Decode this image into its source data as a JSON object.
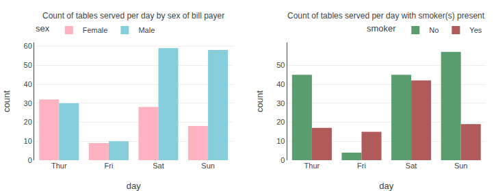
{
  "chart_data": [
    {
      "type": "bar",
      "title": "Count of tables served per day by sex of bill payer",
      "xlabel": "day",
      "ylabel": "count",
      "categories": [
        "Thur",
        "Fri",
        "Sat",
        "Sun"
      ],
      "series": [
        {
          "name": "Female",
          "color": "#ffb3c1",
          "values": [
            32,
            9,
            28,
            18
          ]
        },
        {
          "name": "Male",
          "color": "#87cedc",
          "values": [
            30,
            10,
            59,
            58
          ]
        }
      ],
      "legend_title": "sex",
      "ylim": [
        0,
        62
      ],
      "yticks": [
        0,
        10,
        20,
        30,
        40,
        50,
        60
      ],
      "grid": true,
      "legend": "upper left"
    },
    {
      "type": "bar",
      "title": "Count of tables served per day with smoker(s) present",
      "xlabel": "day",
      "ylabel": "count",
      "categories": [
        "Thur",
        "Fri",
        "Sat",
        "Sun"
      ],
      "series": [
        {
          "name": "No",
          "color": "#5a9e6f",
          "values": [
            45,
            4,
            45,
            57
          ]
        },
        {
          "name": "Yes",
          "color": "#b05a5a",
          "values": [
            17,
            15,
            42,
            19
          ]
        }
      ],
      "legend_title": "smoker",
      "ylim": [
        0,
        62
      ],
      "yticks": [
        0,
        10,
        20,
        30,
        40,
        50
      ],
      "grid": true,
      "legend": "upper right"
    }
  ]
}
